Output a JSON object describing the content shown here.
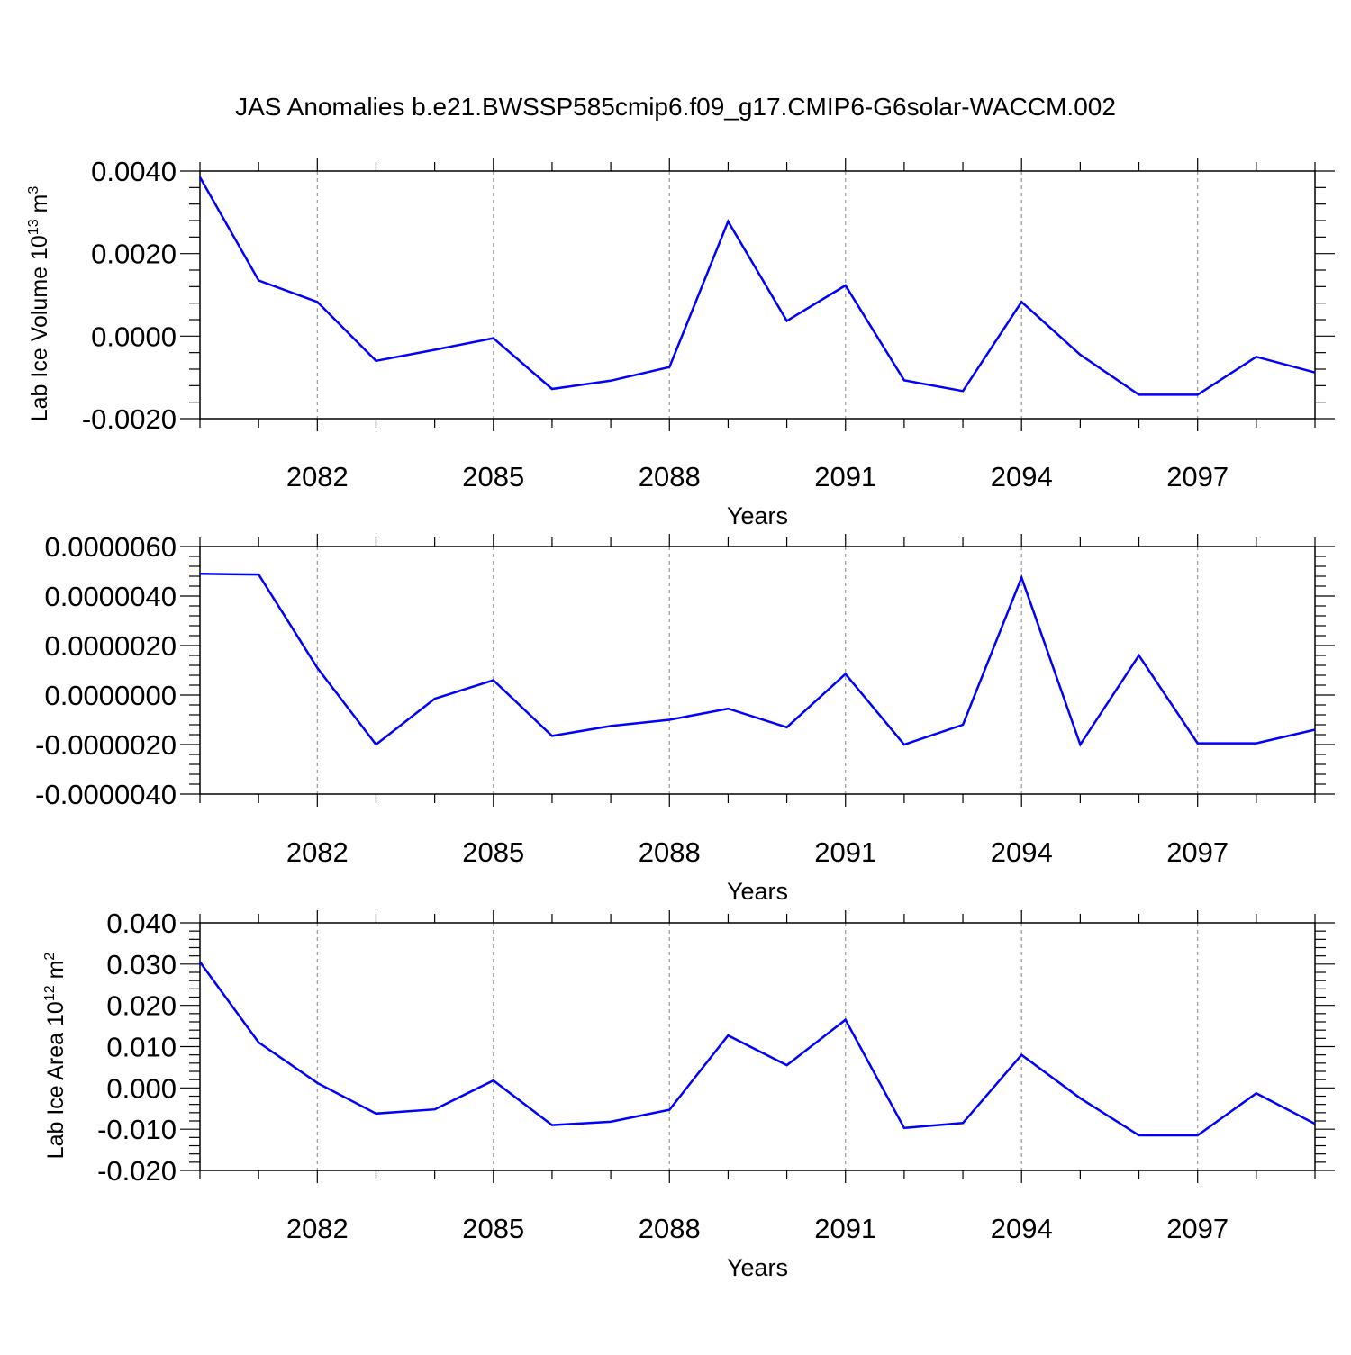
{
  "title": "JAS Anomalies b.e21.BWSSP585cmip6.f09_g17.CMIP6-G6solar-WACCM.002",
  "colors": {
    "line": "#0000ff",
    "axis": "#000000",
    "grid": "#999999"
  },
  "chart_data": [
    {
      "type": "line",
      "ylabel": {
        "text": "Lab Ice Volume 10",
        "exp1": "13",
        "unit": " m",
        "exp2": "3"
      },
      "xlabel": "Years",
      "xlim": [
        2080,
        2099
      ],
      "ylim": [
        -0.002,
        0.004
      ],
      "xticks": [
        "2082",
        "2085",
        "2088",
        "2091",
        "2094",
        "2097"
      ],
      "xtick_values": [
        2082,
        2085,
        2088,
        2091,
        2094,
        2097
      ],
      "yticks": [
        "0.0040",
        "0.0020",
        "0.0000",
        "-0.0020"
      ],
      "ytick_values": [
        0.004,
        0.002,
        0.0,
        -0.002
      ],
      "grid": "vertical dashed at labeled years",
      "x": [
        2080,
        2081,
        2082,
        2083,
        2084,
        2085,
        2086,
        2087,
        2088,
        2089,
        2090,
        2091,
        2092,
        2093,
        2094,
        2095,
        2096,
        2097,
        2098,
        2099
      ],
      "values": [
        0.00385,
        0.00135,
        0.00083,
        -0.0006,
        -0.00033,
        -5e-05,
        -0.00128,
        -0.00108,
        -0.00075,
        0.00278,
        0.00037,
        0.00123,
        -0.00107,
        -0.00133,
        0.00083,
        -0.00045,
        -0.00142,
        -0.00142,
        -0.0005,
        -0.00088
      ]
    },
    {
      "type": "line",
      "ylabel": {
        "text": "",
        "exp1": "",
        "unit": "",
        "exp2": ""
      },
      "xlabel": "Years",
      "xlim": [
        2080,
        2099
      ],
      "ylim": [
        -4e-06,
        6e-06
      ],
      "xticks": [
        "2082",
        "2085",
        "2088",
        "2091",
        "2094",
        "2097"
      ],
      "xtick_values": [
        2082,
        2085,
        2088,
        2091,
        2094,
        2097
      ],
      "yticks": [
        "0.0000060",
        "0.0000040",
        "0.0000020",
        "0.0000000",
        "-0.0000020",
        "-0.0000040"
      ],
      "ytick_values": [
        6e-06,
        4e-06,
        2e-06,
        0.0,
        -2e-06,
        -4e-06
      ],
      "grid": "vertical dashed at labeled years",
      "x": [
        2080,
        2081,
        2082,
        2083,
        2084,
        2085,
        2086,
        2087,
        2088,
        2089,
        2090,
        2091,
        2092,
        2093,
        2094,
        2095,
        2096,
        2097,
        2098,
        2099
      ],
      "values": [
        4.9e-06,
        4.87e-06,
        1.1e-06,
        -2e-06,
        -1.5e-07,
        6e-07,
        -1.65e-06,
        -1.25e-06,
        -1e-06,
        -5.5e-07,
        -1.3e-06,
        8.5e-07,
        -2e-06,
        -1.2e-06,
        4.75e-06,
        -2e-06,
        1.6e-06,
        -1.95e-06,
        -1.95e-06,
        -1.4e-06
      ]
    },
    {
      "type": "line",
      "ylabel": {
        "text": "Lab Ice Area 10",
        "exp1": "12",
        "unit": " m",
        "exp2": "2"
      },
      "xlabel": "Years",
      "xlim": [
        2080,
        2099
      ],
      "ylim": [
        -0.02,
        0.04
      ],
      "xticks": [
        "2082",
        "2085",
        "2088",
        "2091",
        "2094",
        "2097"
      ],
      "xtick_values": [
        2082,
        2085,
        2088,
        2091,
        2094,
        2097
      ],
      "yticks": [
        "0.040",
        "0.030",
        "0.020",
        "0.010",
        "0.000",
        "-0.010",
        "-0.020"
      ],
      "ytick_values": [
        0.04,
        0.03,
        0.02,
        0.01,
        0.0,
        -0.01,
        -0.02
      ],
      "grid": "vertical dashed at labeled years",
      "x": [
        2080,
        2081,
        2082,
        2083,
        2084,
        2085,
        2086,
        2087,
        2088,
        2089,
        2090,
        2091,
        2092,
        2093,
        2094,
        2095,
        2096,
        2097,
        2098,
        2099
      ],
      "values": [
        0.0305,
        0.011,
        0.0012,
        -0.0062,
        -0.0052,
        0.0018,
        -0.009,
        -0.0082,
        -0.0053,
        0.0127,
        0.0055,
        0.0165,
        -0.0097,
        -0.0085,
        0.008,
        -0.0025,
        -0.0115,
        -0.0115,
        -0.0013,
        -0.0087
      ]
    }
  ]
}
